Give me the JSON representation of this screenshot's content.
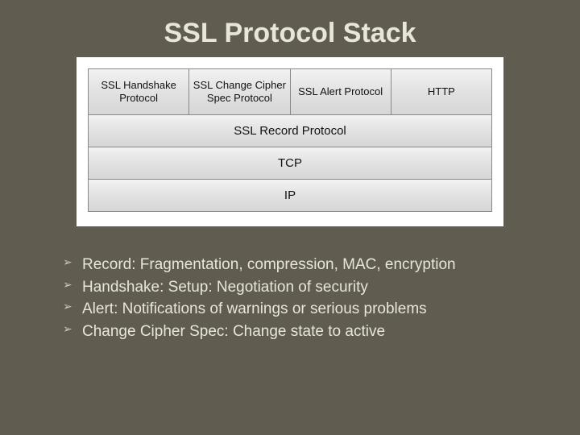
{
  "slide": {
    "title": "SSL Protocol Stack",
    "background_color": "#605d50",
    "title_color": "#e8e6d8",
    "title_fontsize": 34
  },
  "diagram": {
    "type": "layered-stack",
    "background_color": "#ffffff",
    "cell_fill_gradient": [
      "#f2f2f2",
      "#e2e2e2",
      "#d6d6d6"
    ],
    "cell_border_color": "#888888",
    "cell_text_color": "#111111",
    "top_row_fontsize": 13,
    "wide_row_fontsize": 15,
    "layers": {
      "top": [
        "SSL Handshake Protocol",
        "SSL Change Cipher Spec Protocol",
        "SSL Alert Protocol",
        "HTTP"
      ],
      "rows": [
        "SSL Record Protocol",
        "TCP",
        "IP"
      ]
    }
  },
  "bullets": {
    "color": "#e8e6d8",
    "marker_color": "#cfcab6",
    "fontsize": 19,
    "items": [
      "Record: Fragmentation, compression, MAC, encryption",
      "Handshake: Setup: Negotiation of security",
      "Alert: Notifications of warnings or serious problems",
      "Change Cipher Spec: Change state to active"
    ]
  }
}
